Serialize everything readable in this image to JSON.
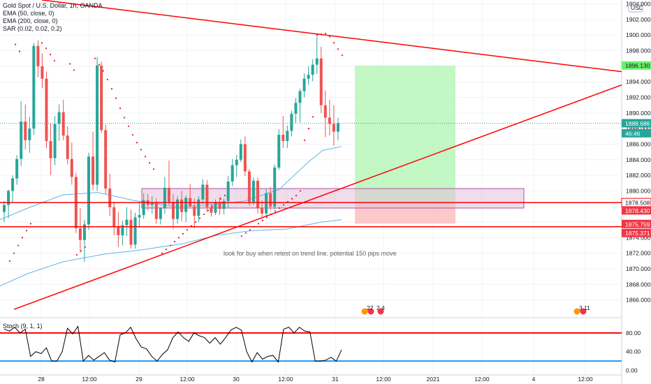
{
  "legend": {
    "title": "Gold Spot / U.S. Dollar, 1h, OANDA",
    "ema50": "EMA (50, close, 0)",
    "ema200": "EMA (200, close, 0)",
    "sar": "SAR (0.02, 0.02, 0.2)"
  },
  "currency": "USD",
  "stoch_label": "Stoch (9, 1, 1)",
  "annotation": "look for buy when retest on trend line. potential 150 pips move",
  "events": [
    "27",
    "2 4",
    "3",
    "11"
  ],
  "price_tags": {
    "last": "1888.686",
    "countdown": "46:46",
    "green": "1896.130",
    "upper_line": "1878.508",
    "red_box": "1878.430",
    "stop": "1875.759",
    "lower_line": "1875.371"
  },
  "colors": {
    "up": "#26a69a",
    "down": "#ef5350",
    "trendline": "#ff0000",
    "ema": "#5fb6e8",
    "sar": "#e0142c",
    "target_zone": "#b9f6ba",
    "stop_zone": "#fbc0c0",
    "zone_box": "#e3bfd8",
    "stoch": "#000000",
    "stoch_upper": "#ff0000",
    "stoch_lower": "#2196f3"
  },
  "chart_data": [
    {
      "type": "candlestick",
      "title": "Gold Spot / U.S. Dollar, 1h, OANDA",
      "y_ticks": [
        1866,
        1868,
        1870,
        1872,
        1874,
        1876,
        1878,
        1880,
        1882,
        1884,
        1886,
        1888,
        1890,
        1892,
        1894,
        1896,
        1898,
        1900,
        1902,
        1904
      ],
      "ylim": [
        1864.0,
        1904.5
      ],
      "x_ticks": [
        "28",
        "12:00",
        "29",
        "12:00",
        "30",
        "12:00",
        "31",
        "12:00",
        "2021",
        "12:00",
        "4",
        "12:00"
      ],
      "grid": true,
      "series": [
        {
          "name": "Gold Spot / U.S. Dollar",
          "ohlc": [
            [
              1877.3,
              1878.7,
              1876.0,
              1878.2
            ],
            [
              1878.2,
              1880.2,
              1876.5,
              1880.0
            ],
            [
              1880.0,
              1882.0,
              1878.6,
              1881.6
            ],
            [
              1881.6,
              1884.6,
              1880.8,
              1884.1
            ],
            [
              1884.1,
              1891.5,
              1883.2,
              1888.9
            ],
            [
              1888.9,
              1891.1,
              1885.3,
              1886.5
            ],
            [
              1886.5,
              1889.5,
              1884.9,
              1888.0
            ],
            [
              1888.0,
              1899.0,
              1887.2,
              1898.6
            ],
            [
              1898.6,
              1899.3,
              1894.6,
              1896.0
            ],
            [
              1896.0,
              1897.6,
              1893.2,
              1894.4
            ],
            [
              1894.4,
              1895.3,
              1885.5,
              1886.4
            ],
            [
              1886.4,
              1888.7,
              1882.0,
              1884.2
            ],
            [
              1884.2,
              1889.6,
              1883.3,
              1888.6
            ],
            [
              1888.6,
              1891.1,
              1886.4,
              1890.1
            ],
            [
              1890.1,
              1891.7,
              1886.5,
              1887.1
            ],
            [
              1887.1,
              1888.3,
              1883.4,
              1884.1
            ],
            [
              1884.1,
              1886.2,
              1880.8,
              1881.8
            ],
            [
              1881.8,
              1882.3,
              1874.6,
              1875.2
            ],
            [
              1875.2,
              1877.8,
              1872.1,
              1873.7
            ],
            [
              1873.7,
              1876.3,
              1870.9,
              1875.7
            ],
            [
              1875.7,
              1884.9,
              1875.0,
              1884.4
            ],
            [
              1884.4,
              1887.6,
              1880.1,
              1880.8
            ],
            [
              1880.8,
              1897.2,
              1880.0,
              1896.1
            ],
            [
              1896.1,
              1896.6,
              1887.4,
              1887.8
            ],
            [
              1887.8,
              1888.5,
              1879.6,
              1880.3
            ],
            [
              1880.3,
              1882.2,
              1876.8,
              1877.9
            ],
            [
              1877.9,
              1878.6,
              1874.3,
              1875.4
            ],
            [
              1875.4,
              1877.3,
              1872.8,
              1874.3
            ],
            [
              1874.3,
              1876.2,
              1873.0,
              1875.6
            ],
            [
              1875.6,
              1877.9,
              1874.2,
              1876.3
            ],
            [
              1876.3,
              1877.6,
              1872.6,
              1873.1
            ],
            [
              1873.1,
              1877.2,
              1872.6,
              1876.6
            ],
            [
              1876.6,
              1878.5,
              1875.3,
              1876.9
            ],
            [
              1876.9,
              1879.7,
              1876.4,
              1878.8
            ],
            [
              1878.8,
              1879.6,
              1877.5,
              1878.2
            ],
            [
              1878.2,
              1879.3,
              1877.1,
              1878.5
            ],
            [
              1878.5,
              1879.0,
              1875.8,
              1876.4
            ],
            [
              1876.4,
              1877.9,
              1875.7,
              1877.8
            ],
            [
              1877.8,
              1881.8,
              1877.1,
              1880.4
            ],
            [
              1880.4,
              1883.9,
              1878.2,
              1878.6
            ],
            [
              1878.6,
              1879.6,
              1875.1,
              1876.4
            ],
            [
              1876.4,
              1879.3,
              1875.8,
              1878.9
            ],
            [
              1878.9,
              1880.0,
              1876.1,
              1877.3
            ],
            [
              1877.3,
              1879.4,
              1876.0,
              1879.1
            ],
            [
              1879.1,
              1880.9,
              1877.9,
              1878.0
            ],
            [
              1878.0,
              1879.0,
              1875.2,
              1876.8
            ],
            [
              1876.8,
              1879.3,
              1876.0,
              1878.9
            ],
            [
              1878.9,
              1881.5,
              1878.3,
              1880.8
            ],
            [
              1880.8,
              1881.4,
              1877.3,
              1877.9
            ],
            [
              1877.9,
              1878.4,
              1876.7,
              1877.2
            ],
            [
              1877.2,
              1878.9,
              1876.9,
              1878.5
            ],
            [
              1878.5,
              1879.2,
              1876.9,
              1877.7
            ],
            [
              1877.7,
              1879.0,
              1877.0,
              1878.7
            ],
            [
              1878.7,
              1881.9,
              1877.9,
              1881.2
            ],
            [
              1881.2,
              1884.1,
              1880.6,
              1883.3
            ],
            [
              1883.3,
              1884.6,
              1881.8,
              1884.0
            ],
            [
              1884.0,
              1886.6,
              1883.7,
              1886.0
            ],
            [
              1886.0,
              1887.0,
              1881.9,
              1882.5
            ],
            [
              1882.5,
              1882.8,
              1878.1,
              1878.6
            ],
            [
              1878.6,
              1881.7,
              1878.2,
              1881.3
            ],
            [
              1881.3,
              1881.7,
              1877.1,
              1877.8
            ],
            [
              1877.8,
              1878.8,
              1876.5,
              1877.1
            ],
            [
              1877.1,
              1880.2,
              1876.7,
              1879.7
            ],
            [
              1879.7,
              1880.5,
              1877.5,
              1878.0
            ],
            [
              1878.0,
              1883.4,
              1877.6,
              1883.0
            ],
            [
              1883.0,
              1887.9,
              1882.7,
              1887.2
            ],
            [
              1887.2,
              1889.6,
              1885.5,
              1886.4
            ],
            [
              1886.4,
              1888.4,
              1885.5,
              1887.7
            ],
            [
              1887.7,
              1890.3,
              1887.0,
              1889.9
            ],
            [
              1889.9,
              1891.9,
              1888.7,
              1891.3
            ],
            [
              1891.3,
              1893.1,
              1888.8,
              1892.8
            ],
            [
              1892.8,
              1895.1,
              1892.0,
              1894.4
            ],
            [
              1894.4,
              1896.0,
              1893.6,
              1894.9
            ],
            [
              1894.9,
              1896.9,
              1894.1,
              1896.2
            ],
            [
              1896.2,
              1899.8,
              1895.0,
              1897.0
            ],
            [
              1897.0,
              1898.5,
              1890.0,
              1891.0
            ],
            [
              1891.0,
              1892.9,
              1886.9,
              1889.4
            ],
            [
              1889.4,
              1891.7,
              1887.1,
              1888.6
            ],
            [
              1888.6,
              1891.0,
              1885.8,
              1887.6
            ],
            [
              1887.6,
              1889.4,
              1886.5,
              1888.7
            ]
          ]
        }
      ]
    },
    {
      "type": "line",
      "title": "Stoch (9, 1, 1)",
      "y_ticks": [
        0,
        40,
        80
      ],
      "ylim": [
        -8,
        108
      ],
      "grid": true,
      "series": [
        {
          "name": "Stoch (9, 1, 1)",
          "values": [
            88,
            84,
            92,
            80,
            88,
            30,
            40,
            36,
            48,
            20,
            20,
            40,
            90,
            78,
            94,
            20,
            32,
            22,
            30,
            38,
            22,
            18,
            76,
            80,
            92,
            68,
            50,
            46,
            30,
            20,
            34,
            44,
            70,
            82,
            70,
            62,
            80,
            74,
            70,
            58,
            70,
            56,
            70,
            86,
            92,
            86,
            40,
            18,
            38,
            24,
            30,
            32,
            18,
            88,
            92,
            80,
            92,
            84,
            82,
            20,
            20,
            22,
            28,
            20,
            44
          ]
        },
        {
          "name": "Level 80",
          "values": [
            80
          ]
        },
        {
          "name": "Level 20",
          "values": [
            20
          ]
        }
      ]
    }
  ]
}
